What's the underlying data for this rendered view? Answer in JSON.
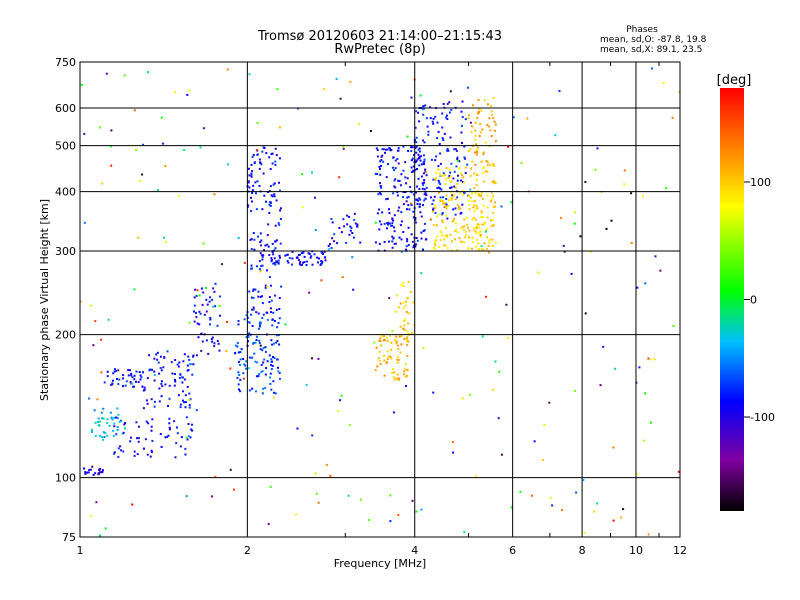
{
  "chart_data": {
    "type": "scatter",
    "title": "Tromsø 20120603 21:14:00–21:15:43",
    "subtitle": "RwPretec (8p)",
    "xlabel": "Frequency [MHz]",
    "ylabel": "Stationary phase Virtual Height [km]",
    "x_scale": "log",
    "y_scale": "log",
    "xlim": [
      1,
      12
    ],
    "ylim": [
      75,
      750
    ],
    "x_ticks": [
      1,
      2,
      4,
      6,
      8,
      10,
      12
    ],
    "y_ticks": [
      75,
      100,
      200,
      300,
      400,
      500,
      600,
      750
    ],
    "grid": true,
    "colorbar": {
      "label": "[deg]",
      "range": [
        -180,
        180
      ],
      "ticks": [
        100,
        0,
        -100
      ],
      "colormap": "rainbow",
      "colors": [
        "#000000",
        "#8000a0",
        "#0000ff",
        "#00c0ff",
        "#00ff00",
        "#ffff00",
        "#ff8000",
        "#ff0000"
      ]
    },
    "phases": {
      "heading": "Phases",
      "line1": "mean, sd,O: -87.8, 19.8",
      "line2": "mean, sd,X:  89.1, 23.5"
    },
    "traces": [
      {
        "f_range": [
          1.0,
          1.1
        ],
        "h_range": [
          101,
          105
        ],
        "phase": -95,
        "n": 20
      },
      {
        "f_range": [
          1.05,
          1.2
        ],
        "h_range": [
          120,
          140
        ],
        "phase": -40,
        "n": 40
      },
      {
        "f_range": [
          1.1,
          1.3
        ],
        "h_range": [
          155,
          170
        ],
        "phase": -85,
        "n": 40
      },
      {
        "f_range": [
          1.15,
          1.6
        ],
        "h_range": [
          110,
          135
        ],
        "phase": -90,
        "n": 60
      },
      {
        "f_range": [
          1.3,
          1.6
        ],
        "h_range": [
          140,
          185
        ],
        "phase": -88,
        "n": 80
      },
      {
        "f_range": [
          1.6,
          1.8
        ],
        "h_range": [
          180,
          260
        ],
        "phase": -90,
        "n": 50
      },
      {
        "f_range": [
          1.9,
          2.3
        ],
        "h_range": [
          150,
          220
        ],
        "phase": -70,
        "n": 120
      },
      {
        "f_range": [
          2.0,
          2.3
        ],
        "h_range": [
          220,
          500
        ],
        "phase": -85,
        "n": 160
      },
      {
        "f_range": [
          2.2,
          2.8
        ],
        "h_range": [
          280,
          300
        ],
        "phase": -88,
        "n": 60
      },
      {
        "f_range": [
          2.8,
          3.2
        ],
        "h_range": [
          300,
          360
        ],
        "phase": -85,
        "n": 30
      },
      {
        "f_range": [
          3.4,
          4.2
        ],
        "h_range": [
          300,
          500
        ],
        "phase": -88,
        "n": 200
      },
      {
        "f_range": [
          3.4,
          3.9
        ],
        "h_range": [
          160,
          200
        ],
        "phase": 110,
        "n": 70
      },
      {
        "f_range": [
          3.7,
          4.0
        ],
        "h_range": [
          200,
          260
        ],
        "phase": 100,
        "n": 30
      },
      {
        "f_range": [
          4.0,
          5.0
        ],
        "h_range": [
          350,
          620
        ],
        "phase": -85,
        "n": 150
      },
      {
        "f_range": [
          4.3,
          5.6
        ],
        "h_range": [
          300,
          450
        ],
        "phase": 95,
        "n": 220
      },
      {
        "f_range": [
          5.0,
          5.6
        ],
        "h_range": [
          450,
          650
        ],
        "phase": 110,
        "n": 60
      }
    ],
    "noise_points": {
      "f_range": [
        1.0,
        12.0
      ],
      "h_range": [
        75,
        750
      ],
      "n": 260
    }
  }
}
